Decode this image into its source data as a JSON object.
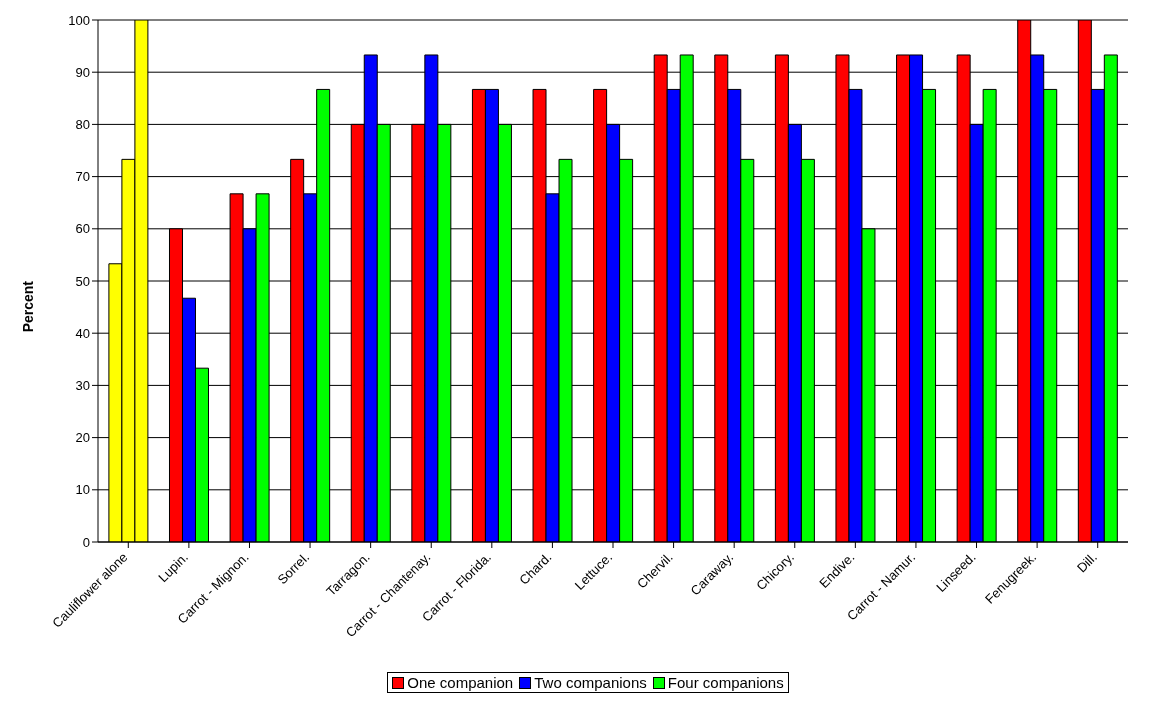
{
  "chart_data": {
    "type": "bar",
    "ylabel": "Percent",
    "categories": [
      "Cauliflower alone",
      "Lupin.",
      "Carrot - Mignon.",
      "Sorrel.",
      "Tarragon.",
      "Carrot - Chantenay.",
      "Carrot - Florida.",
      "Chard.",
      "Lettuce.",
      "Chervil.",
      "Caraway.",
      "Chicory.",
      "Endive.",
      "Carrot - Namur.",
      "Linseed.",
      "Fenugreek.",
      "Dill."
    ],
    "series": [
      {
        "name": "One companion",
        "color": "#ff0000",
        "colors": [
          "#ffff00",
          "#ff0000",
          "#ff0000",
          "#ff0000",
          "#ff0000",
          "#ff0000",
          "#ff0000",
          "#ff0000",
          "#ff0000",
          "#ff0000",
          "#ff0000",
          "#ff0000",
          "#ff0000",
          "#ff0000",
          "#ff0000",
          "#ff0000",
          "#ff0000"
        ],
        "values": [
          53.3,
          60,
          66.7,
          73.3,
          80,
          80,
          86.7,
          86.7,
          86.7,
          93.3,
          93.3,
          93.3,
          93.3,
          93.3,
          93.3,
          100,
          100
        ]
      },
      {
        "name": "Two companions",
        "color": "#0000ff",
        "colors": [
          "#ffff00",
          "#0000ff",
          "#0000ff",
          "#0000ff",
          "#0000ff",
          "#0000ff",
          "#0000ff",
          "#0000ff",
          "#0000ff",
          "#0000ff",
          "#0000ff",
          "#0000ff",
          "#0000ff",
          "#0000ff",
          "#0000ff",
          "#0000ff",
          "#0000ff"
        ],
        "values": [
          73.3,
          46.7,
          60,
          66.7,
          93.3,
          93.3,
          86.7,
          66.7,
          80,
          86.7,
          86.7,
          80,
          86.7,
          93.3,
          80,
          93.3,
          86.7
        ]
      },
      {
        "name": "Four companions",
        "color": "#00ff00",
        "colors": [
          "#ffff00",
          "#00ff00",
          "#00ff00",
          "#00ff00",
          "#00ff00",
          "#00ff00",
          "#00ff00",
          "#00ff00",
          "#00ff00",
          "#00ff00",
          "#00ff00",
          "#00ff00",
          "#00ff00",
          "#00ff00",
          "#00ff00",
          "#00ff00",
          "#00ff00"
        ],
        "values": [
          100,
          33.3,
          66.7,
          86.7,
          80,
          80,
          80,
          73.3,
          73.3,
          93.3,
          73.3,
          73.3,
          60,
          86.7,
          86.7,
          86.7,
          93.3
        ]
      }
    ],
    "ylim": [
      0,
      100
    ],
    "yticks": [
      0,
      10,
      20,
      30,
      40,
      50,
      60,
      70,
      80,
      90,
      100
    ],
    "grid": "y",
    "legend": "bottom"
  }
}
